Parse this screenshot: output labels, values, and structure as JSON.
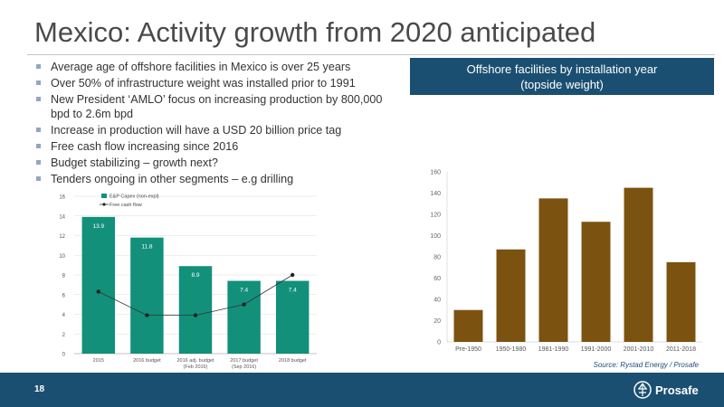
{
  "slide": {
    "title": "Mexico: Activity growth from 2020 anticipated",
    "page_number": "18",
    "source": "Source: Rystad Energy / Prosafe",
    "logo_text": "Prosafe"
  },
  "bullets": [
    "Average age of offshore facilities in Mexico is over 25 years",
    "Over 50% of infrastructure weight was installed prior to 1991",
    "New President ‘AMLO’ focus on increasing production by 800,000 bpd to 2.6m bpd",
    "Increase in production will have a USD 20 billion price tag",
    "Free cash flow increasing since 2016",
    "Budget stabilizing – growth next?",
    "Tenders ongoing in other segments – e.g drilling"
  ],
  "panel": {
    "title_line1": "Offshore facilities by installation year",
    "title_line2": "(topside weight)"
  },
  "colors": {
    "accent": "#1b4f72",
    "teal_bar": "#12907a",
    "brown_bar": "#7b520f",
    "line": "#333333"
  },
  "chart_data": [
    {
      "type": "bar",
      "categories": [
        "2015",
        "2016 budget",
        "2016 adj. budget (Feb 2016)",
        "2017 budget (Sep 2016)",
        "2018 budget"
      ],
      "category_lines": [
        [
          "2015"
        ],
        [
          "2016 budget"
        ],
        [
          "2016 adj. budget",
          "(Feb 2016)"
        ],
        [
          "2017 budget",
          "(Sep 2016)"
        ],
        [
          "2018 budget"
        ]
      ],
      "series": [
        {
          "name": "E&P Capex (non-expl)",
          "type": "bar",
          "values": [
            13.9,
            11.8,
            8.9,
            7.4,
            7.4
          ],
          "labels": [
            "13.9",
            "11.8",
            "8.9",
            "7.4",
            "7.4"
          ]
        },
        {
          "name": "Free cash flow",
          "type": "line",
          "values": [
            6.3,
            3.9,
            3.9,
            5.0,
            8.0
          ]
        }
      ],
      "ylim": [
        0,
        16
      ],
      "yticks": [
        "0",
        "2",
        "4",
        "6",
        "8",
        "10",
        "12",
        "14",
        "16"
      ],
      "legend": "top-left"
    },
    {
      "type": "bar",
      "categories": [
        "Pre-1950",
        "1950-1980",
        "1981-1990",
        "1991-2000",
        "2001-2010",
        "2011-2018"
      ],
      "values": [
        30,
        87,
        135,
        113,
        145,
        75
      ],
      "ylim": [
        0,
        160
      ],
      "yticks": [
        "0",
        "20",
        "40",
        "60",
        "80",
        "100",
        "120",
        "140",
        "160"
      ]
    }
  ]
}
